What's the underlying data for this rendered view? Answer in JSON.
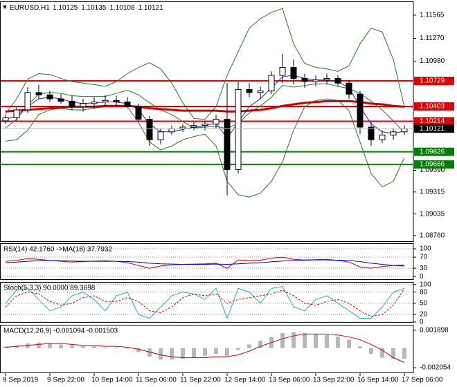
{
  "chart_data": [
    {
      "type": "candlestick",
      "title": "EURUSD,H1",
      "header_values": [
        1.10125,
        1.10135,
        1.10108,
        1.10121
      ],
      "categories": [
        "9 Sep 2019",
        null,
        null,
        null,
        "9 Sep 22:00",
        null,
        null,
        null,
        "10 Sep 14:00",
        null,
        null,
        null,
        "11 Sep 06:00",
        null,
        null,
        null,
        "11 Sep 22:00",
        null,
        null,
        null,
        "12 Sep 14:00",
        null,
        null,
        null,
        "13 Sep 06:00",
        null,
        null,
        null,
        "13 Sep 22:00",
        null,
        null,
        null,
        "16 Sep 14:00",
        null,
        null,
        null,
        "17 Sep 06:00"
      ],
      "open": [
        1.1022,
        1.1026,
        1.1036,
        1.1058,
        1.1055,
        1.105,
        1.1047,
        1.104,
        1.1044,
        1.1046,
        1.1048,
        1.1046,
        1.104,
        1.1024,
        1.0998,
        1.1008,
        1.1012,
        1.1014,
        1.1016,
        1.1018,
        1.1024,
        1.096,
        1.1062,
        1.1058,
        1.106,
        1.108,
        1.109,
        1.1076,
        1.1072,
        1.1074,
        1.1076,
        1.107,
        1.1056,
        1.1014,
        1.0998,
        1.1004,
        1.1008
      ],
      "high": [
        1.103,
        1.104,
        1.1065,
        1.1068,
        1.106,
        1.1056,
        1.1054,
        1.105,
        1.1052,
        1.1055,
        1.1054,
        1.1052,
        1.1044,
        1.1028,
        1.1012,
        1.1016,
        1.1018,
        1.102,
        1.1022,
        1.103,
        1.107,
        1.1072,
        1.107,
        1.1066,
        1.1085,
        1.1107,
        1.11,
        1.1082,
        1.108,
        1.1082,
        1.108,
        1.1074,
        1.106,
        1.102,
        1.101,
        1.1012,
        1.1016
      ],
      "low": [
        1.1018,
        1.1022,
        1.1032,
        1.105,
        1.1046,
        1.1044,
        1.1036,
        1.1034,
        1.1038,
        1.104,
        1.104,
        1.1038,
        1.102,
        1.099,
        1.0992,
        1.1004,
        1.1008,
        1.101,
        1.101,
        1.1012,
        1.0927,
        1.0955,
        1.1052,
        1.105,
        1.1056,
        1.107,
        1.1068,
        1.1064,
        1.1066,
        1.1068,
        1.1066,
        1.105,
        1.1005,
        1.099,
        1.0994,
        1.0998,
        1.1004
      ],
      "close": [
        1.1026,
        1.1036,
        1.1058,
        1.1055,
        1.105,
        1.1047,
        1.104,
        1.1044,
        1.1046,
        1.1048,
        1.1046,
        1.104,
        1.1024,
        1.0998,
        1.1008,
        1.1012,
        1.1014,
        1.1016,
        1.1018,
        1.1024,
        1.096,
        1.1062,
        1.1058,
        1.106,
        1.108,
        1.109,
        1.1076,
        1.1072,
        1.1074,
        1.1076,
        1.107,
        1.1056,
        1.1014,
        1.0998,
        1.1004,
        1.1008,
        1.1012
      ],
      "series": [
        {
          "color": "#1f7a1f",
          "values": [
            1.1031,
            1.105,
            1.1075,
            1.1082,
            1.1081,
            1.1076,
            1.1072,
            1.107,
            1.1068,
            1.1066,
            1.1072,
            1.1082,
            1.109,
            1.1096,
            1.1088,
            1.107,
            1.1045,
            1.1025,
            1.1024,
            1.104,
            1.108,
            1.111,
            1.114,
            1.1152,
            1.116,
            1.1165,
            1.112,
            1.1095,
            1.109,
            1.1088,
            1.1085,
            1.1092,
            1.112,
            1.114,
            1.1135,
            1.11,
            1.104
          ]
        },
        {
          "color": "#1f7a1f",
          "values": [
            1.1013,
            1.1024,
            1.1042,
            1.1056,
            1.1058,
            1.1057,
            1.1054,
            1.1053,
            1.1053,
            1.1053,
            1.1057,
            1.1061,
            1.1055,
            1.1045,
            1.1036,
            1.103,
            1.1021,
            1.1013,
            1.1014,
            1.1015,
            1.1012,
            1.1019,
            1.1032,
            1.1041,
            1.1052,
            1.1067,
            1.1065,
            1.1067,
            1.1069,
            1.1069,
            1.1066,
            1.1063,
            1.1057,
            1.1047,
            1.1036,
            1.1022,
            1.1007
          ]
        },
        {
          "color": "#1f7a1f",
          "values": [
            1.0996,
            1.0998,
            1.101,
            1.103,
            1.1036,
            1.1038,
            1.1036,
            1.1036,
            1.1038,
            1.104,
            1.1042,
            1.104,
            1.102,
            1.0995,
            1.0985,
            1.099,
            1.0998,
            1.1002,
            1.1005,
            1.099,
            1.0945,
            1.0928,
            1.0925,
            1.093,
            1.0945,
            1.097,
            1.101,
            1.104,
            1.1048,
            1.105,
            1.1048,
            1.1035,
            1.0995,
            1.0955,
            1.0938,
            1.0945,
            1.0975
          ]
        },
        {
          "color": "#cc0000",
          "thick": true,
          "values": [
            1.1034,
            1.1035,
            1.1036,
            1.1037,
            1.1038,
            1.1039,
            1.104,
            1.104,
            1.104,
            1.1041,
            1.1041,
            1.1041,
            1.104,
            1.1038,
            1.1037,
            1.1036,
            1.1035,
            1.1035,
            1.1035,
            1.1035,
            1.1034,
            1.1034,
            1.1035,
            1.1036,
            1.1038,
            1.1041,
            1.1043,
            1.1045,
            1.1046,
            1.1047,
            1.1047,
            1.1047,
            1.1046,
            1.1044,
            1.1043,
            1.1041,
            1.104
          ]
        },
        {
          "color": "#2020c0",
          "values": [
            1.1024,
            1.1028,
            1.104,
            1.105,
            1.1052,
            1.105,
            1.1046,
            1.1044,
            1.1045,
            1.1046,
            1.1046,
            1.1044,
            1.1036,
            1.1018,
            1.1008,
            1.1008,
            1.1011,
            1.1014,
            1.1016,
            1.1019,
            1.1,
            1.102,
            1.104,
            1.105,
            1.1064,
            1.1078,
            1.108,
            1.1076,
            1.1074,
            1.1074,
            1.1072,
            1.1064,
            1.104,
            1.1018,
            1.1008,
            1.1006,
            1.1009
          ]
        }
      ],
      "levels": [
        {
          "value": 1.10729,
          "color": "#e00000"
        },
        {
          "value": 1.10403,
          "color": "#e00000"
        },
        {
          "value": 1.10214,
          "color": "#e00000"
        },
        {
          "value": 1.09826,
          "color": "#008000"
        },
        {
          "value": 1.09666,
          "color": "#008000"
        }
      ],
      "last_price": 1.10121,
      "ylim": [
        1.0868,
        1.1174
      ],
      "yticks": [
        1.11565,
        {
          "value": 1.1127,
          "label": "1.11270"
        },
        {
          "value": 1.1098,
          "label": "1.10980"
        },
        {
          "value": 1.0959,
          "label": "1.09590"
        },
        1.09315,
        1.09035,
        {
          "value": 1.0876,
          "label": "1.08760"
        }
      ],
      "grid": false
    },
    {
      "type": "line",
      "title": "RSI(14) 42.1760 ->MA(18) 37.7932",
      "series": [
        {
          "color": "#cc0000",
          "values": [
            55,
            58,
            65,
            62,
            58,
            55,
            52,
            54,
            56,
            57,
            55,
            50,
            40,
            30,
            38,
            42,
            44,
            45,
            46,
            48,
            30,
            60,
            58,
            59,
            66,
            70,
            62,
            60,
            61,
            62,
            58,
            52,
            35,
            30,
            36,
            40,
            42
          ]
        },
        {
          "color": "#0000cc",
          "values": [
            50,
            52,
            55,
            57,
            58,
            57,
            56,
            55,
            55,
            55,
            55,
            54,
            52,
            48,
            46,
            45,
            44,
            44,
            44,
            45,
            44,
            46,
            48,
            50,
            53,
            56,
            58,
            59,
            60,
            60,
            59,
            58,
            54,
            48,
            44,
            40,
            38
          ]
        }
      ],
      "ylim": [
        -12,
        120
      ],
      "yticks": [
        100,
        70,
        30,
        0
      ],
      "grid": true
    },
    {
      "type": "line",
      "title": "Stoch(5,3,3) 90.0000 89.3698",
      "series": [
        {
          "color": "#20b2aa",
          "values": [
            50,
            85,
            90,
            60,
            30,
            40,
            70,
            80,
            60,
            30,
            70,
            80,
            20,
            10,
            40,
            70,
            80,
            75,
            60,
            90,
            10,
            90,
            80,
            50,
            90,
            95,
            40,
            30,
            60,
            70,
            50,
            30,
            10,
            10,
            40,
            80,
            90
          ]
        },
        {
          "color": "#cc0000",
          "dash": true,
          "values": [
            40,
            70,
            80,
            75,
            55,
            45,
            50,
            65,
            70,
            55,
            55,
            65,
            55,
            30,
            25,
            40,
            65,
            75,
            70,
            75,
            50,
            60,
            65,
            70,
            75,
            85,
            70,
            50,
            45,
            55,
            60,
            50,
            30,
            15,
            20,
            45,
            89
          ]
        }
      ],
      "ylim": [
        -2,
        107
      ],
      "yticks": [
        100,
        80,
        50,
        20,
        0
      ],
      "grid": true
    },
    {
      "type": "histogram-line",
      "title": "MACD(12,26,9) -0.001094 -0.001503",
      "values": [
        0.0002,
        0.0003,
        0.0005,
        0.0006,
        0.0005,
        0.0004,
        0.0003,
        0.0002,
        0.0002,
        0.0001,
        0.0001,
        0,
        -0.0004,
        -0.0009,
        -0.0012,
        -0.0012,
        -0.0011,
        -0.001,
        -0.0008,
        -0.0006,
        -0.0008,
        -0.0002,
        0.0004,
        0.0008,
        0.0012,
        0.0016,
        0.0017,
        0.0016,
        0.0015,
        0.0014,
        0.0012,
        0.0009,
        0.0002,
        -0.0006,
        -0.001,
        -0.0011,
        -0.0011
      ],
      "color": "#b8b8b8",
      "series": [
        {
          "color": "#cc0000",
          "values": [
            0.0001,
            0.0002,
            0.0003,
            0.0004,
            0.0005,
            0.0005,
            0.0004,
            0.0003,
            0.0003,
            0.0002,
            0.0002,
            0.0001,
            -0.0001,
            -0.0004,
            -0.0007,
            -0.0009,
            -0.001,
            -0.001,
            -0.001,
            -0.0009,
            -0.0009,
            -0.0007,
            -0.0003,
            0.0002,
            0.0006,
            0.001,
            0.0013,
            0.0015,
            0.0015,
            0.0015,
            0.0014,
            0.0012,
            0.0009,
            0.0004,
            -0.0002,
            -0.001,
            -0.0015
          ]
        }
      ],
      "ylim": [
        -0.00263,
        0.00247
      ],
      "yticks": [
        0.001898,
        -0.002054
      ],
      "grid": false
    }
  ]
}
